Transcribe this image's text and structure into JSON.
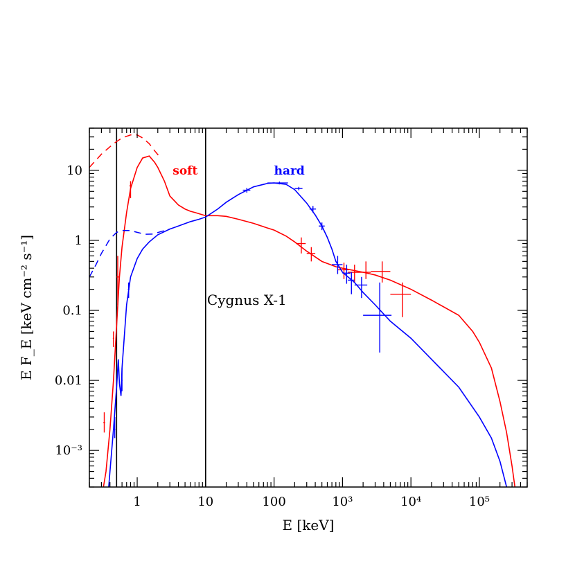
{
  "chart_data": {
    "type": "line",
    "xlabel": "E [keV]",
    "ylabel": "E F_E [keV cm⁻² s⁻¹]",
    "x_scale": "log",
    "y_scale": "log",
    "xlim": [
      0.2,
      500000
    ],
    "ylim": [
      0.0003,
      40
    ],
    "x_ticks": [
      {
        "value": 1,
        "label": "1"
      },
      {
        "value": 10,
        "label": "10"
      },
      {
        "value": 100,
        "label": "100"
      },
      {
        "value": 1000,
        "label": "10³"
      },
      {
        "value": 10000,
        "label": "10⁴"
      },
      {
        "value": 100000,
        "label": "10⁵"
      }
    ],
    "y_ticks": [
      {
        "value": 0.001,
        "label": "10⁻³"
      },
      {
        "value": 0.01,
        "label": "0.01"
      },
      {
        "value": 0.1,
        "label": "0.1"
      },
      {
        "value": 1,
        "label": "1"
      },
      {
        "value": 10,
        "label": "10"
      }
    ],
    "vertical_lines": [
      0.5,
      10
    ],
    "annotation": {
      "text": "Cygnus X-1",
      "x": 10.5,
      "y": 0.115
    },
    "series": [
      {
        "name": "soft",
        "color": "#ff0000",
        "label_pos": {
          "x": 3.3,
          "y": 10
        },
        "dashed_model": {
          "x": [
            0.2,
            0.3,
            0.45,
            0.6,
            0.8,
            1.0,
            1.2,
            1.5,
            1.8,
            2.2
          ],
          "y": [
            11,
            17,
            24,
            29,
            32,
            32,
            29,
            24,
            19,
            15
          ]
        },
        "model": {
          "x": [
            0.3,
            0.35,
            0.4,
            0.45,
            0.5,
            0.55,
            0.6,
            0.7,
            0.8,
            1.0,
            1.2,
            1.5,
            1.8,
            2.0,
            2.5,
            3.0,
            4.0,
            5.0,
            6.0,
            7.0,
            8.0,
            10,
            15,
            20,
            30,
            50,
            80,
            100,
            150,
            200,
            300,
            500,
            800,
            1000,
            2000,
            3000,
            5000,
            10000,
            20000,
            50000,
            80000,
            100000,
            150000,
            200000,
            250000,
            300000,
            350000
          ],
          "y": [
            0.0002,
            0.0005,
            0.002,
            0.01,
            0.06,
            0.3,
            0.8,
            2.5,
            5.5,
            11,
            15,
            16,
            13,
            11,
            7,
            4.3,
            3.2,
            2.8,
            2.6,
            2.5,
            2.4,
            2.25,
            2.25,
            2.2,
            2.0,
            1.75,
            1.5,
            1.4,
            1.15,
            0.95,
            0.7,
            0.5,
            0.42,
            0.4,
            0.35,
            0.32,
            0.27,
            0.2,
            0.14,
            0.085,
            0.05,
            0.035,
            0.015,
            0.005,
            0.0018,
            0.0006,
            0.0002
          ]
        },
        "points": [
          {
            "x": 0.33,
            "y": 0.0025,
            "xerr": [
              0.32,
              0.34
            ],
            "yerr": [
              0.0018,
              0.0035
            ]
          },
          {
            "x": 0.45,
            "y": 0.04,
            "xerr": [
              0.44,
              0.46
            ],
            "yerr": [
              0.03,
              0.05
            ]
          },
          {
            "x": 0.52,
            "y": 0.3,
            "xerr": [
              0.5,
              0.54
            ],
            "yerr": [
              0.12,
              0.6
            ]
          },
          {
            "x": 0.8,
            "y": 6.0,
            "xerr": [
              0.77,
              0.83
            ],
            "yerr": [
              4.0,
              7.0
            ]
          },
          {
            "x": 250,
            "y": 0.9,
            "xerr": [
              210,
              290
            ],
            "yerr": [
              0.65,
              1.1
            ]
          },
          {
            "x": 350,
            "y": 0.65,
            "xerr": [
              300,
              400
            ],
            "yerr": [
              0.5,
              0.8
            ]
          },
          {
            "x": 1050,
            "y": 0.38,
            "xerr": [
              850,
              1250
            ],
            "yerr": [
              0.28,
              0.48
            ]
          },
          {
            "x": 1500,
            "y": 0.35,
            "xerr": [
              1200,
              1800
            ],
            "yerr": [
              0.25,
              0.45
            ]
          },
          {
            "x": 2200,
            "y": 0.35,
            "xerr": [
              1800,
              2600
            ],
            "yerr": [
              0.28,
              0.5
            ]
          },
          {
            "x": 3800,
            "y": 0.36,
            "xerr": [
              2600,
              5000
            ],
            "yerr": [
              0.25,
              0.5
            ]
          },
          {
            "x": 7500,
            "y": 0.17,
            "xerr": [
              5000,
              10000
            ],
            "yerr": [
              0.08,
              0.25
            ]
          }
        ]
      },
      {
        "name": "hard",
        "color": "#0000ff",
        "label_pos": {
          "x": 100,
          "y": 10
        },
        "dashed_model": {
          "x": [
            0.2,
            0.25,
            0.3,
            0.4,
            0.5,
            0.6,
            0.8,
            1.0,
            1.3,
            1.7,
            2.2,
            3.0
          ],
          "y": [
            0.3,
            0.45,
            0.65,
            1.05,
            1.3,
            1.38,
            1.38,
            1.3,
            1.22,
            1.23,
            1.33,
            1.45
          ]
        },
        "model": {
          "x": [
            0.35,
            0.4,
            0.45,
            0.5,
            0.53,
            0.55,
            0.58,
            0.6,
            0.7,
            0.8,
            1.0,
            1.2,
            1.5,
            2.0,
            3.0,
            4.0,
            6.0,
            8.0,
            10,
            15,
            20,
            30,
            50,
            80,
            100,
            150,
            200,
            300,
            400,
            500,
            600,
            700,
            800,
            1000,
            1500,
            2000,
            3000,
            5000,
            10000,
            20000,
            50000,
            100000,
            150000,
            200000,
            250000,
            300000,
            350000
          ],
          "y": [
            0.0001,
            0.0005,
            0.002,
            0.008,
            0.02,
            0.009,
            0.006,
            0.015,
            0.12,
            0.3,
            0.55,
            0.75,
            0.95,
            1.2,
            1.45,
            1.6,
            1.85,
            2.0,
            2.15,
            2.8,
            3.5,
            4.5,
            5.8,
            6.5,
            6.6,
            6.3,
            5.3,
            3.4,
            2.3,
            1.6,
            1.1,
            0.75,
            0.5,
            0.35,
            0.25,
            0.18,
            0.12,
            0.07,
            0.04,
            0.02,
            0.008,
            0.003,
            0.0015,
            0.0007,
            0.0003,
            0.00015,
            8e-05
          ]
        },
        "points": [
          {
            "x": 0.47,
            "y": 0.002,
            "xerr": [
              0.46,
              0.48
            ],
            "yerr": [
              0.0015,
              0.003
            ]
          },
          {
            "x": 0.6,
            "y": 0.01,
            "xerr": [
              0.59,
              0.61
            ],
            "yerr": [
              0.007,
              0.015
            ]
          },
          {
            "x": 0.75,
            "y": 0.2,
            "xerr": [
              0.73,
              0.77
            ],
            "yerr": [
              0.15,
              0.25
            ]
          },
          {
            "x": 40,
            "y": 5.2,
            "xerr": [
              35,
              45
            ],
            "yerr": [
              4.8,
              5.6
            ]
          },
          {
            "x": 120,
            "y": 6.6,
            "xerr": [
              80,
              160
            ],
            "yerr": [
              6.3,
              6.9
            ]
          },
          {
            "x": 230,
            "y": 5.5,
            "xerr": [
              200,
              260
            ],
            "yerr": [
              5.2,
              5.8
            ]
          },
          {
            "x": 370,
            "y": 2.8,
            "xerr": [
              330,
              410
            ],
            "yerr": [
              2.5,
              3.1
            ]
          },
          {
            "x": 500,
            "y": 1.6,
            "xerr": [
              450,
              550
            ],
            "yerr": [
              1.4,
              1.8
            ]
          },
          {
            "x": 850,
            "y": 0.45,
            "xerr": [
              700,
              1000
            ],
            "yerr": [
              0.33,
              0.6
            ]
          },
          {
            "x": 1150,
            "y": 0.34,
            "xerr": [
              1000,
              1300
            ],
            "yerr": [
              0.24,
              0.45
            ]
          },
          {
            "x": 1350,
            "y": 0.27,
            "xerr": [
              1200,
              1500
            ],
            "yerr": [
              0.17,
              0.35
            ]
          },
          {
            "x": 1900,
            "y": 0.23,
            "xerr": [
              1500,
              2300
            ],
            "yerr": [
              0.15,
              0.3
            ]
          },
          {
            "x": 3500,
            "y": 0.085,
            "xerr": [
              2000,
              5200
            ],
            "yerr": [
              0.025,
              0.25
            ]
          }
        ]
      }
    ]
  }
}
